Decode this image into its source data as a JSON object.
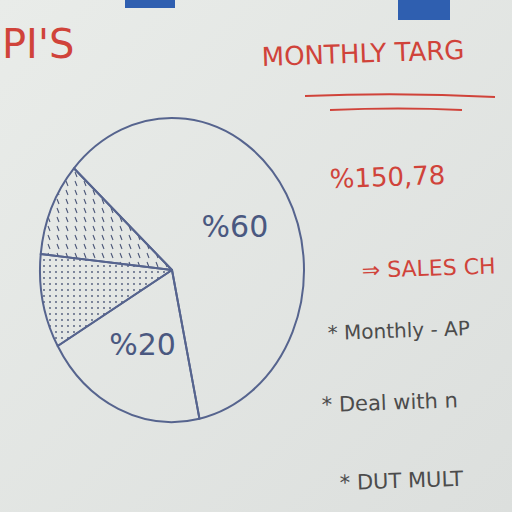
{
  "chart_data": {
    "type": "pie",
    "title": "PI'S",
    "values": [
      60,
      20,
      10,
      10
    ],
    "value_labels": [
      "%60",
      "%20",
      null,
      null
    ],
    "annotations": [
      "MONTHLY TARG",
      "%150,78",
      "⇒ SALES CH",
      "* Monthly - AP",
      "* Deal with n",
      "* DUT MULT"
    ],
    "data_labels": true
  }
}
